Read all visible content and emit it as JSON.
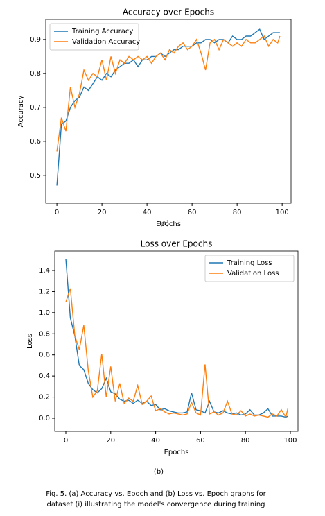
{
  "chart_data": [
    {
      "type": "line",
      "title": "Accuracy over Epochs",
      "x_label": "Epochs",
      "y_label": "Accuracy",
      "x": [
        0,
        2,
        4,
        6,
        8,
        10,
        12,
        14,
        16,
        18,
        20,
        22,
        24,
        26,
        28,
        30,
        32,
        34,
        36,
        38,
        40,
        42,
        44,
        46,
        48,
        50,
        52,
        54,
        56,
        58,
        60,
        62,
        64,
        66,
        68,
        70,
        72,
        74,
        76,
        78,
        80,
        82,
        84,
        86,
        88,
        90,
        92,
        94,
        96,
        98,
        99
      ],
      "series": [
        {
          "name": "Training Accuracy",
          "color": "#1f77b4",
          "values": [
            0.47,
            0.65,
            0.66,
            0.7,
            0.72,
            0.73,
            0.76,
            0.75,
            0.77,
            0.79,
            0.78,
            0.8,
            0.79,
            0.81,
            0.82,
            0.83,
            0.83,
            0.84,
            0.82,
            0.84,
            0.84,
            0.85,
            0.85,
            0.86,
            0.85,
            0.86,
            0.87,
            0.87,
            0.88,
            0.88,
            0.88,
            0.89,
            0.89,
            0.9,
            0.9,
            0.89,
            0.9,
            0.9,
            0.89,
            0.91,
            0.9,
            0.9,
            0.91,
            0.91,
            0.92,
            0.93,
            0.9,
            0.91,
            0.92,
            0.92,
            0.92
          ]
        },
        {
          "name": "Validation Accuracy",
          "color": "#ff7f0e",
          "values": [
            0.57,
            0.67,
            0.63,
            0.76,
            0.7,
            0.74,
            0.81,
            0.78,
            0.8,
            0.79,
            0.84,
            0.78,
            0.85,
            0.8,
            0.84,
            0.83,
            0.85,
            0.84,
            0.85,
            0.84,
            0.85,
            0.83,
            0.85,
            0.86,
            0.84,
            0.87,
            0.86,
            0.88,
            0.89,
            0.87,
            0.88,
            0.9,
            0.86,
            0.81,
            0.89,
            0.9,
            0.87,
            0.9,
            0.89,
            0.88,
            0.89,
            0.88,
            0.9,
            0.89,
            0.89,
            0.9,
            0.91,
            0.88,
            0.9,
            0.89,
            0.91
          ]
        }
      ],
      "xlim": [
        -4.95,
        103.95
      ],
      "ylim": [
        0.418,
        0.959
      ],
      "xticks": [
        0,
        20,
        40,
        60,
        80,
        100
      ],
      "yticks": [
        0.5,
        0.6,
        0.7,
        0.8,
        0.9
      ],
      "legend": "upper left"
    },
    {
      "type": "line",
      "title": "Loss over Epochs",
      "x_label": "Epochs",
      "y_label": "Loss",
      "x": [
        0,
        2,
        4,
        6,
        8,
        10,
        12,
        14,
        16,
        18,
        20,
        22,
        24,
        26,
        28,
        30,
        32,
        34,
        36,
        38,
        40,
        42,
        44,
        46,
        48,
        50,
        52,
        54,
        56,
        58,
        60,
        62,
        64,
        66,
        68,
        70,
        72,
        74,
        76,
        78,
        80,
        82,
        84,
        86,
        88,
        90,
        92,
        94,
        96,
        98,
        99
      ],
      "series": [
        {
          "name": "Training Loss",
          "color": "#1f77b4",
          "values": [
            1.51,
            0.95,
            0.78,
            0.5,
            0.46,
            0.33,
            0.27,
            0.24,
            0.28,
            0.38,
            0.25,
            0.23,
            0.18,
            0.16,
            0.17,
            0.14,
            0.17,
            0.14,
            0.16,
            0.12,
            0.13,
            0.08,
            0.09,
            0.07,
            0.06,
            0.05,
            0.05,
            0.06,
            0.24,
            0.08,
            0.07,
            0.05,
            0.16,
            0.06,
            0.05,
            0.07,
            0.05,
            0.04,
            0.05,
            0.03,
            0.04,
            0.08,
            0.03,
            0.03,
            0.05,
            0.09,
            0.02,
            0.02,
            0.02,
            0.01,
            0.02
          ]
        },
        {
          "name": "Validation Loss",
          "color": "#ff7f0e",
          "values": [
            1.1,
            1.23,
            0.78,
            0.65,
            0.88,
            0.45,
            0.2,
            0.26,
            0.61,
            0.2,
            0.49,
            0.16,
            0.33,
            0.14,
            0.19,
            0.16,
            0.31,
            0.13,
            0.16,
            0.21,
            0.07,
            0.09,
            0.06,
            0.04,
            0.05,
            0.04,
            0.03,
            0.04,
            0.15,
            0.05,
            0.03,
            0.51,
            0.04,
            0.06,
            0.03,
            0.05,
            0.16,
            0.04,
            0.03,
            0.07,
            0.02,
            0.04,
            0.02,
            0.03,
            0.02,
            0.01,
            0.04,
            0.02,
            0.08,
            0.01,
            0.1
          ]
        }
      ],
      "xlim": [
        -4.94,
        103.4
      ],
      "ylim": [
        -0.125,
        1.584
      ],
      "xticks": [
        0,
        20,
        40,
        60,
        80,
        100
      ],
      "yticks": [
        {
          "value": 0,
          "label": "0.0"
        },
        0.2,
        0.4,
        0.6,
        0.8,
        {
          "value": 1,
          "label": "1.0"
        },
        1.2,
        1.4
      ],
      "legend": "upper right"
    }
  ],
  "panel_labels": [
    "(a)",
    "(b)"
  ],
  "figure_caption": [
    "Fig. 5. (a) Accuracy vs. Epoch and (b) Loss vs. Epoch graphs for",
    "dataset (i)  illustrating the model's convergence during  training"
  ]
}
